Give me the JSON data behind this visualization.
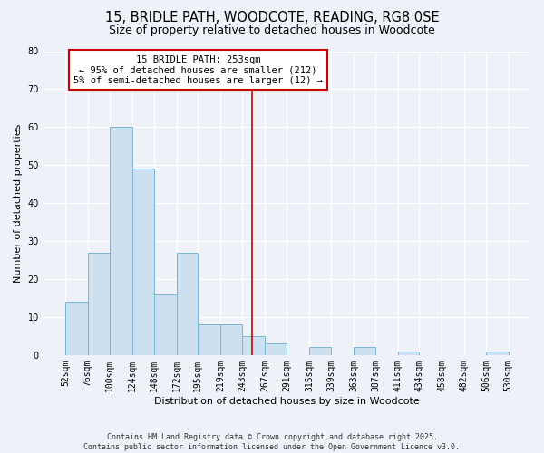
{
  "title": "15, BRIDLE PATH, WOODCOTE, READING, RG8 0SE",
  "subtitle": "Size of property relative to detached houses in Woodcote",
  "xlabel": "Distribution of detached houses by size in Woodcote",
  "ylabel": "Number of detached properties",
  "bin_edges": [
    52,
    76,
    100,
    124,
    148,
    172,
    195,
    219,
    243,
    267,
    291,
    315,
    339,
    363,
    387,
    411,
    434,
    458,
    482,
    506,
    530
  ],
  "bin_labels": [
    "52sqm",
    "76sqm",
    "100sqm",
    "124sqm",
    "148sqm",
    "172sqm",
    "195sqm",
    "219sqm",
    "243sqm",
    "267sqm",
    "291sqm",
    "315sqm",
    "339sqm",
    "363sqm",
    "387sqm",
    "411sqm",
    "434sqm",
    "458sqm",
    "482sqm",
    "506sqm",
    "530sqm"
  ],
  "counts": [
    14,
    27,
    60,
    49,
    16,
    27,
    8,
    8,
    5,
    3,
    0,
    2,
    0,
    2,
    0,
    1,
    0,
    0,
    0,
    1
  ],
  "bar_color": "#cce0f0",
  "bar_edge_color": "#7ab4d4",
  "property_value": 253,
  "vline_color": "#cc0000",
  "annotation_title": "15 BRIDLE PATH: 253sqm",
  "annotation_line1": "← 95% of detached houses are smaller (212)",
  "annotation_line2": "5% of semi-detached houses are larger (12) →",
  "annotation_box_edge": "#cc0000",
  "ylim": [
    0,
    80
  ],
  "yticks": [
    0,
    10,
    20,
    30,
    40,
    50,
    60,
    70,
    80
  ],
  "background_color": "#eef2f8",
  "footer_line1": "Contains HM Land Registry data © Crown copyright and database right 2025.",
  "footer_line2": "Contains public sector information licensed under the Open Government Licence v3.0.",
  "title_fontsize": 10.5,
  "subtitle_fontsize": 9,
  "axis_label_fontsize": 8,
  "tick_fontsize": 7,
  "annotation_fontsize": 7.5
}
